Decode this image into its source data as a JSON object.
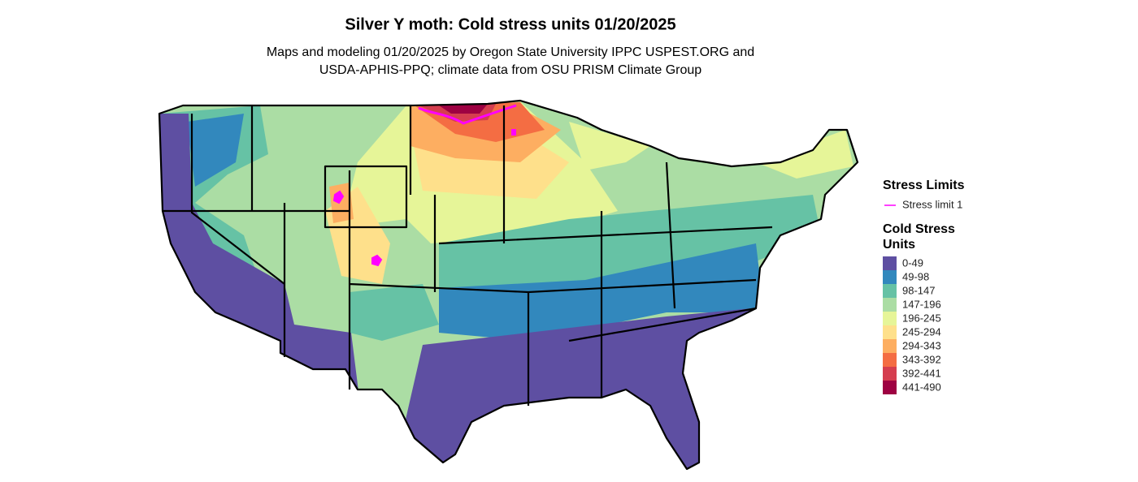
{
  "title": "Silver Y moth: Cold stress units 01/20/2025",
  "subtitle": [
    "Maps and modeling 01/20/2025 by Oregon State University IPPC USPEST.ORG and",
    "USDA-APHIS-PPQ; climate data from OSU PRISM Climate Group"
  ],
  "legend": {
    "limits_title": "Stress Limits",
    "limits": [
      {
        "label": "Stress limit 1",
        "color": "#ff00ff"
      }
    ],
    "units_title": [
      "Cold Stress",
      "Units"
    ],
    "units": [
      {
        "label": "0-49",
        "color": "#5e4fa2"
      },
      {
        "label": "49-98",
        "color": "#3288bd"
      },
      {
        "label": "98-147",
        "color": "#66c2a5"
      },
      {
        "label": "147-196",
        "color": "#abdda4"
      },
      {
        "label": "196-245",
        "color": "#e6f598"
      },
      {
        "label": "245-294",
        "color": "#fee08b"
      },
      {
        "label": "294-343",
        "color": "#fdae61"
      },
      {
        "label": "343-392",
        "color": "#f46d43"
      },
      {
        "label": "392-441",
        "color": "#d53e4f"
      },
      {
        "label": "441-490",
        "color": "#9e0142"
      }
    ]
  }
}
